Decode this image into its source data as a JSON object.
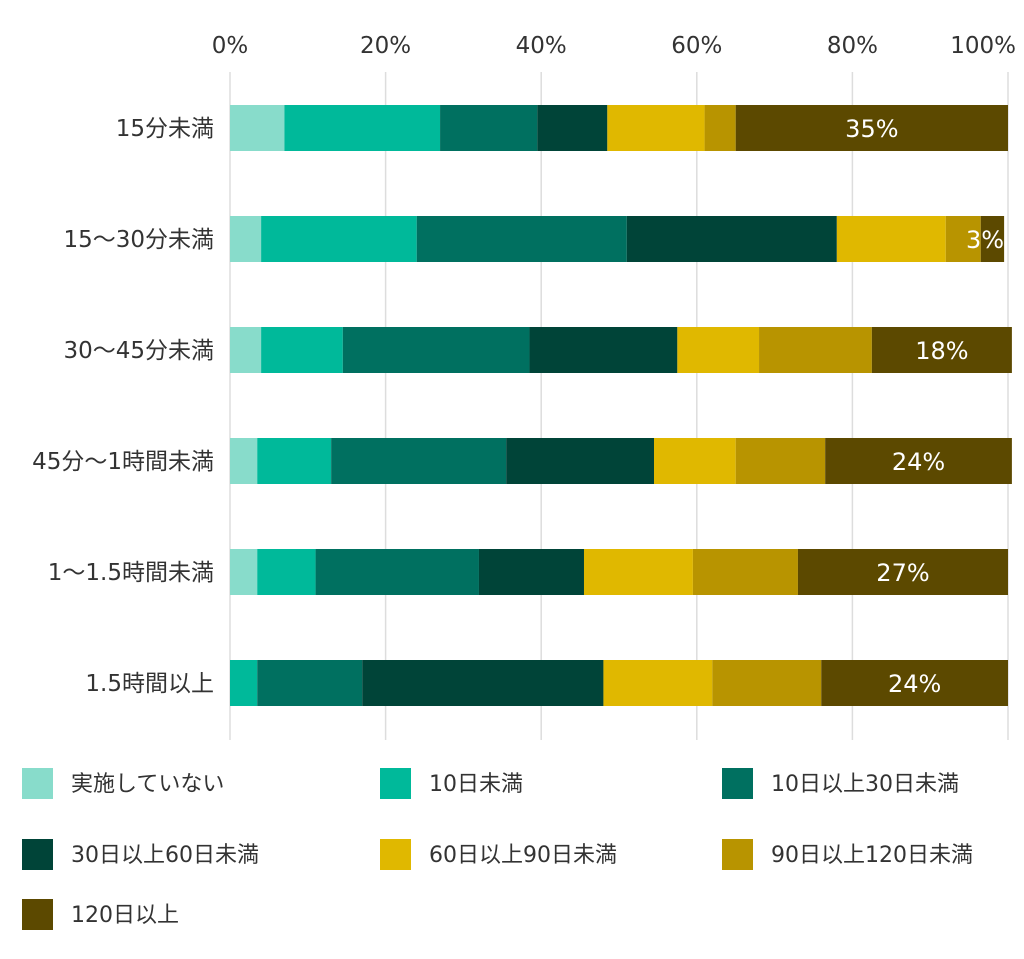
{
  "chart_data": {
    "type": "bar",
    "orientation": "horizontal",
    "stacked": true,
    "xlim": [
      0,
      100
    ],
    "x_ticks": [
      "0%",
      "20%",
      "40%",
      "60%",
      "80%",
      "100%"
    ],
    "categories": [
      "15分未満",
      "15〜30分未満",
      "30〜45分未満",
      "45分〜1時間未満",
      "1〜1.5時間未満",
      "1.5時間以上"
    ],
    "series": [
      {
        "name": "実施していない",
        "color": "#88dccb",
        "values": [
          7,
          4,
          4,
          3.5,
          3.5,
          0
        ]
      },
      {
        "name": "10日未満",
        "color": "#00b99a",
        "values": [
          20,
          20,
          10.5,
          9.5,
          7.5,
          3.5
        ]
      },
      {
        "name": "10日以上30日未満",
        "color": "#007060",
        "values": [
          12.5,
          27,
          24,
          22.5,
          21,
          13.5
        ]
      },
      {
        "name": "30日以上60日未満",
        "color": "#004438",
        "values": [
          9,
          27,
          19,
          19,
          13.5,
          31
        ]
      },
      {
        "name": "60日以上90日未満",
        "color": "#e0b800",
        "values": [
          12.5,
          14,
          10.5,
          10.5,
          14,
          14
        ]
      },
      {
        "name": "90日以上120日未満",
        "color": "#b89400",
        "values": [
          4,
          4.5,
          14.5,
          11.5,
          13.5,
          14
        ]
      },
      {
        "name": "120日以上",
        "color": "#5c4900",
        "values": [
          35,
          3,
          18,
          24,
          27,
          24
        ]
      }
    ],
    "data_labels": [
      "35%",
      "3%",
      "18%",
      "24%",
      "27%",
      "24%"
    ],
    "grid": true,
    "legend_position": "bottom"
  }
}
